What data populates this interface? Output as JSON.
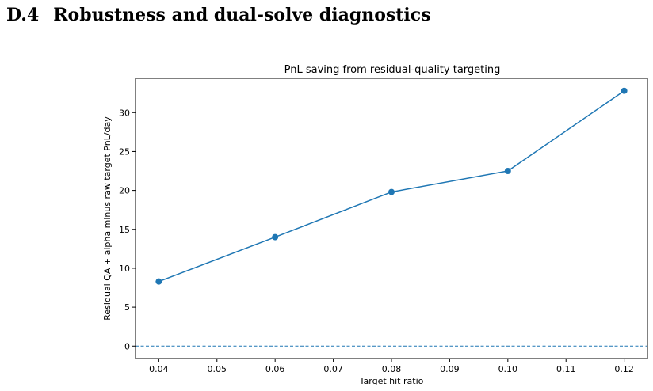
{
  "section": {
    "number": "D.4",
    "title": "Robustness and dual-solve diagnostics"
  },
  "chart_data": {
    "type": "line",
    "title": "PnL saving from residual-quality targeting",
    "xlabel": "Target hit ratio",
    "ylabel": "Residual QA + alpha minus raw target PnL/day",
    "xlim": [
      0.036,
      0.124
    ],
    "ylim": [
      -1.6,
      34.4
    ],
    "x_ticks": [
      "0.04",
      "0.05",
      "0.06",
      "0.07",
      "0.08",
      "0.09",
      "0.10",
      "0.11",
      "0.12"
    ],
    "y_ticks": [
      "0",
      "5",
      "10",
      "15",
      "20",
      "25",
      "30"
    ],
    "grid": false,
    "series": [
      {
        "color": "#1f77b4",
        "marker": "circle",
        "x": [
          0.04,
          0.06,
          0.08,
          0.1,
          0.12
        ],
        "y": [
          8.3,
          14.0,
          19.8,
          22.5,
          32.8
        ]
      }
    ],
    "reference_line": {
      "y": 0,
      "style": "dashed",
      "color": "#1f77b4"
    }
  }
}
